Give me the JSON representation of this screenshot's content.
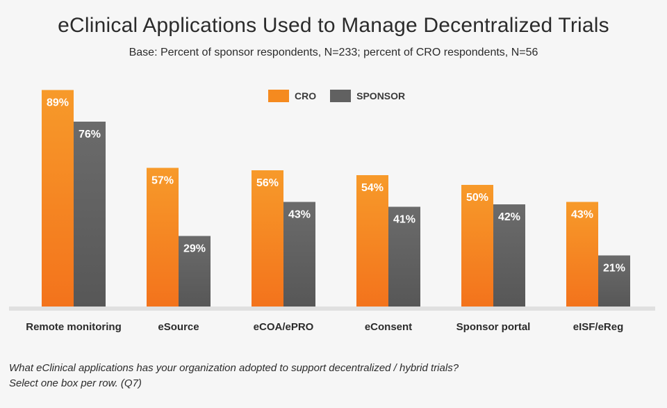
{
  "chart_data": {
    "type": "bar",
    "title": "eClinical Applications Used to Manage Decentralized Trials",
    "subtitle": "Base: Percent of sponsor respondents, N=233; percent of CRO respondents, N=56",
    "categories": [
      "Remote monitoring",
      "eSource",
      "eCOA/ePRO",
      "eConsent",
      "Sponsor portal",
      "eISF/eReg"
    ],
    "series": [
      {
        "name": "CRO",
        "color": "#f58a1f",
        "values": [
          89,
          57,
          56,
          54,
          50,
          43
        ]
      },
      {
        "name": "SPONSOR",
        "color": "#616161",
        "values": [
          76,
          29,
          43,
          41,
          42,
          21
        ]
      }
    ],
    "value_suffix": "%",
    "ylim": [
      0,
      100
    ],
    "legend": "top-center",
    "grid": false
  },
  "footnote": {
    "line1": "What eClinical applications has your organization adopted to support decentralized / hybrid trials?",
    "line2": "Select one box per row. (Q7)"
  }
}
